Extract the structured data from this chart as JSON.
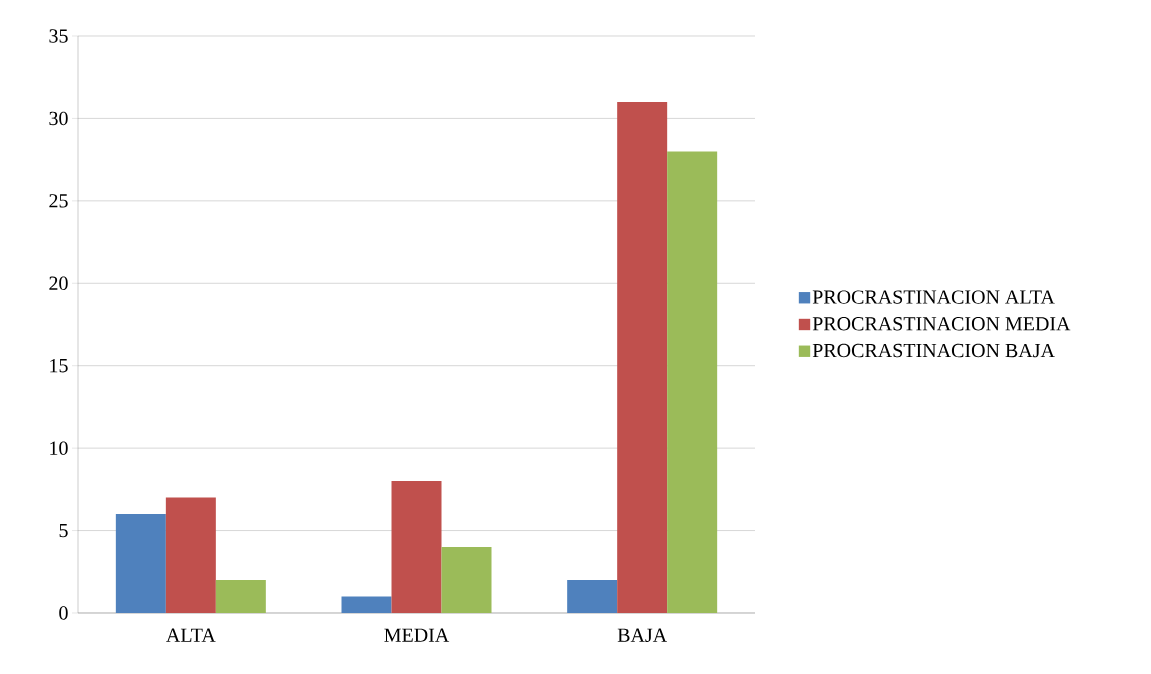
{
  "chart_data": {
    "type": "bar",
    "categories": [
      "ALTA",
      "MEDIA",
      "BAJA"
    ],
    "series": [
      {
        "name": "PROCRASTINACION ALTA",
        "color": "#4f81bd",
        "values": [
          6,
          1,
          2
        ]
      },
      {
        "name": "PROCRASTINACION MEDIA",
        "color": "#c0504d",
        "values": [
          7,
          8,
          31
        ]
      },
      {
        "name": "PROCRASTINACION BAJA",
        "color": "#9bbb59",
        "values": [
          2,
          4,
          28
        ]
      }
    ],
    "ylim": [
      0,
      35
    ],
    "yticks": [
      0,
      5,
      10,
      15,
      20,
      25,
      30,
      35
    ],
    "grid": "y",
    "legend": "right"
  }
}
